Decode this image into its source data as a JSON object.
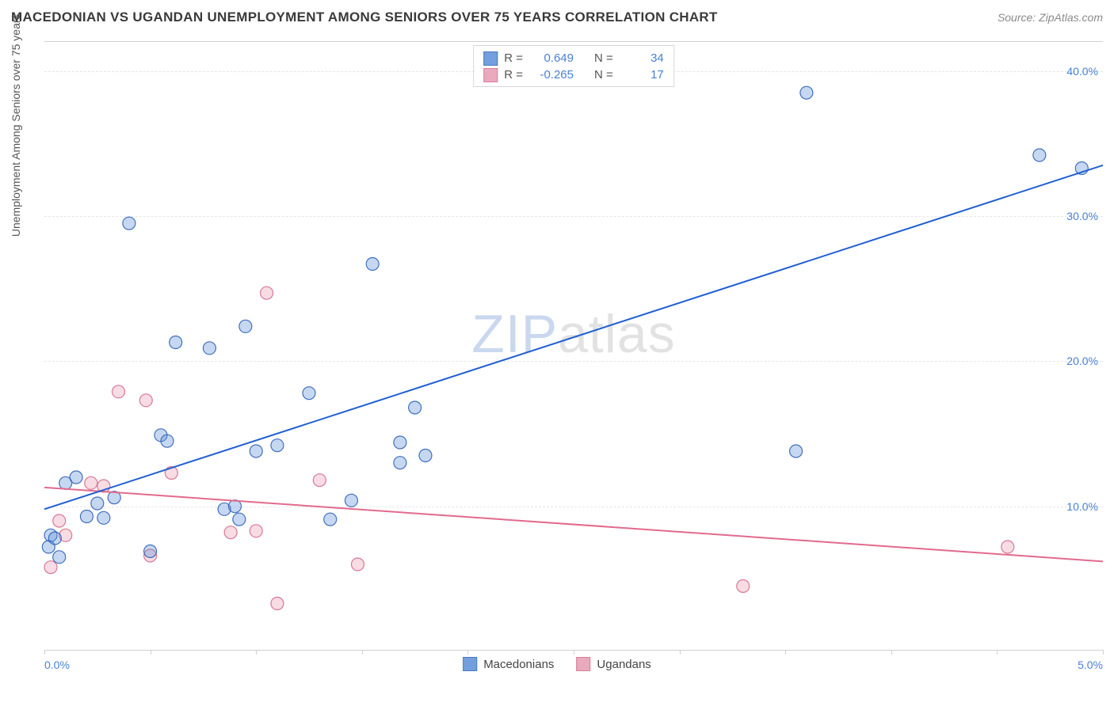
{
  "title": "MACEDONIAN VS UGANDAN UNEMPLOYMENT AMONG SENIORS OVER 75 YEARS CORRELATION CHART",
  "source": "Source: ZipAtlas.com",
  "y_axis_label": "Unemployment Among Seniors over 75 years",
  "x_origin_label": "0.0%",
  "x_end_label": "5.0%",
  "watermark_a": "ZIP",
  "watermark_b": "atlas",
  "chart": {
    "type": "scatter",
    "xlim": [
      0.0,
      5.0
    ],
    "ylim": [
      0.0,
      42.0
    ],
    "y_ticks": [
      10.0,
      20.0,
      30.0,
      40.0
    ],
    "y_tick_labels": [
      "10.0%",
      "20.0%",
      "30.0%",
      "40.0%"
    ],
    "x_ticks": [
      0.0,
      0.5,
      1.0,
      1.5,
      2.0,
      2.5,
      3.0,
      3.5,
      4.0,
      4.5,
      5.0
    ],
    "background_color": "#ffffff",
    "grid_color": "#e6e6e6",
    "axis_color": "#d0d0d0",
    "tick_label_color": "#4a7fd6",
    "marker_radius": 8,
    "marker_fill_opacity": 0.35,
    "marker_stroke_opacity": 0.9,
    "line_width": 2
  },
  "series": {
    "macedonians": {
      "label": "Macedonians",
      "color": "#5b8fd6",
      "stroke": "#2f62b6",
      "trend_color": "#1f5fd1",
      "R": "0.649",
      "N": "34",
      "trend": {
        "x1": 0.0,
        "y1": 9.8,
        "x2": 5.0,
        "y2": 33.5
      },
      "points": [
        {
          "x": 0.02,
          "y": 7.2
        },
        {
          "x": 0.03,
          "y": 8.0
        },
        {
          "x": 0.05,
          "y": 7.8
        },
        {
          "x": 0.07,
          "y": 6.5
        },
        {
          "x": 0.1,
          "y": 11.6
        },
        {
          "x": 0.15,
          "y": 12.0
        },
        {
          "x": 0.2,
          "y": 9.3
        },
        {
          "x": 0.25,
          "y": 10.2
        },
        {
          "x": 0.28,
          "y": 9.2
        },
        {
          "x": 0.33,
          "y": 10.6
        },
        {
          "x": 0.4,
          "y": 29.5
        },
        {
          "x": 0.5,
          "y": 6.9
        },
        {
          "x": 0.55,
          "y": 14.9
        },
        {
          "x": 0.58,
          "y": 14.5
        },
        {
          "x": 0.62,
          "y": 21.3
        },
        {
          "x": 0.78,
          "y": 20.9
        },
        {
          "x": 0.85,
          "y": 9.8
        },
        {
          "x": 0.9,
          "y": 10.0
        },
        {
          "x": 0.92,
          "y": 9.1
        },
        {
          "x": 0.95,
          "y": 22.4
        },
        {
          "x": 1.0,
          "y": 13.8
        },
        {
          "x": 1.1,
          "y": 14.2
        },
        {
          "x": 1.25,
          "y": 17.8
        },
        {
          "x": 1.35,
          "y": 9.1
        },
        {
          "x": 1.45,
          "y": 10.4
        },
        {
          "x": 1.55,
          "y": 26.7
        },
        {
          "x": 1.68,
          "y": 14.4
        },
        {
          "x": 1.68,
          "y": 13.0
        },
        {
          "x": 1.75,
          "y": 16.8
        },
        {
          "x": 1.8,
          "y": 13.5
        },
        {
          "x": 3.55,
          "y": 13.8
        },
        {
          "x": 3.6,
          "y": 38.5
        },
        {
          "x": 4.7,
          "y": 34.2
        },
        {
          "x": 4.9,
          "y": 33.3
        }
      ]
    },
    "ugandans": {
      "label": "Ugandans",
      "color": "#e79bb2",
      "stroke": "#d56a8c",
      "trend_color": "#e26a8d",
      "R": "-0.265",
      "N": "17",
      "trend": {
        "x1": 0.0,
        "y1": 11.3,
        "x2": 5.0,
        "y2": 6.2
      },
      "points": [
        {
          "x": 0.03,
          "y": 5.8
        },
        {
          "x": 0.07,
          "y": 9.0
        },
        {
          "x": 0.1,
          "y": 8.0
        },
        {
          "x": 0.22,
          "y": 11.6
        },
        {
          "x": 0.28,
          "y": 11.4
        },
        {
          "x": 0.35,
          "y": 17.9
        },
        {
          "x": 0.48,
          "y": 17.3
        },
        {
          "x": 0.5,
          "y": 6.6
        },
        {
          "x": 0.6,
          "y": 12.3
        },
        {
          "x": 0.88,
          "y": 8.2
        },
        {
          "x": 1.0,
          "y": 8.3
        },
        {
          "x": 1.05,
          "y": 24.7
        },
        {
          "x": 1.1,
          "y": 3.3
        },
        {
          "x": 1.3,
          "y": 11.8
        },
        {
          "x": 1.48,
          "y": 6.0
        },
        {
          "x": 3.3,
          "y": 4.5
        },
        {
          "x": 4.55,
          "y": 7.2
        }
      ]
    }
  },
  "stats_box": {
    "r_label": "R  =",
    "n_label": "N  ="
  },
  "legend_bottom": {
    "item1": "Macedonians",
    "item2": "Ugandans"
  }
}
